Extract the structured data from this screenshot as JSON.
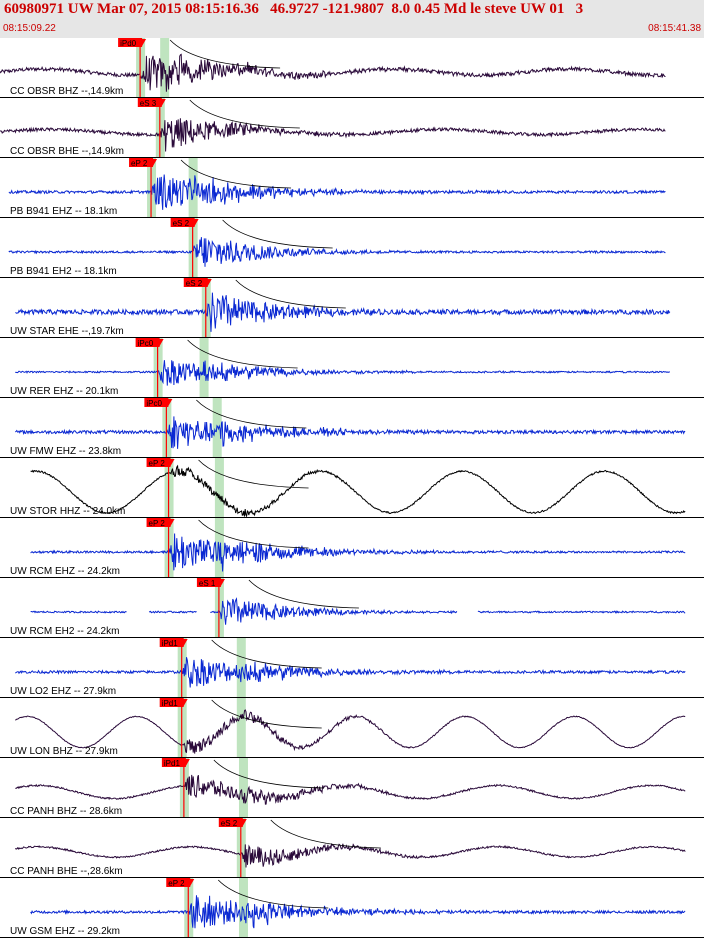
{
  "header": {
    "title": "60980971 UW Mar 07, 2015 08:15:16.36   46.9727 -121.9807  8.0 0.45 Md le steve UW 01   3",
    "time_start": "08:15:09.22",
    "time_end": "08:15:41.38"
  },
  "colors": {
    "header_bg": "#e6e6e6",
    "header_text": "#cc0000",
    "trace_velocity": "#0a28d2",
    "trace_broadband": "#2a0a3a",
    "trace_accel": "#000000",
    "pick": "#ff0000",
    "window": "#bfe4bf"
  },
  "chart_data": {
    "type": "seismogram",
    "x_range_sec": [
      0,
      32.16
    ],
    "traces": [
      {
        "label": "CC OBSR BHZ --,14.9km",
        "color_key": "trace_broadband",
        "pick_label": "iPd0",
        "pick_sec": 6.4,
        "s_sec": 7.5,
        "start": 0,
        "end": 30.4,
        "noise": 0.07,
        "lf": 0.12,
        "lf_period": 8,
        "eq": 0.85,
        "gaps": []
      },
      {
        "label": "CC OBSR BHE --,14.9km",
        "color_key": "trace_broadband",
        "pick_label": "eS 3",
        "pick_sec": 7.3,
        "s_sec": 7.3,
        "start": 0,
        "end": 30.4,
        "noise": 0.06,
        "lf": 0.1,
        "lf_period": 9,
        "eq": 0.8,
        "gaps": []
      },
      {
        "label": "PB B941 EHZ -- 18.1km",
        "color_key": "trace_velocity",
        "pick_label": "eP 2",
        "pick_sec": 6.9,
        "s_sec": 8.8,
        "start": 0.4,
        "end": 30.4,
        "noise": 0.05,
        "lf": 0,
        "lf_period": 5,
        "eq": 0.9,
        "gaps": []
      },
      {
        "label": "PB B941 EH2 -- 18.1km",
        "color_key": "trace_velocity",
        "pick_label": "eS 2",
        "pick_sec": 8.8,
        "s_sec": 8.8,
        "start": 0.4,
        "end": 30.4,
        "noise": 0.04,
        "lf": 0,
        "lf_period": 5,
        "eq": 0.85,
        "gaps": []
      },
      {
        "label": "UW STAR EHE --,19.7km",
        "color_key": "trace_velocity",
        "pick_label": "eS 2",
        "pick_sec": 9.4,
        "s_sec": 9.4,
        "start": 0.7,
        "end": 30.6,
        "noise": 0.09,
        "lf": 0,
        "lf_period": 5,
        "eq": 0.9,
        "gaps": []
      },
      {
        "label": "UW RER EHZ -- 20.1km",
        "color_key": "trace_velocity",
        "pick_label": "iPc0",
        "pick_sec": 7.2,
        "s_sec": 9.3,
        "start": 0.7,
        "end": 30.6,
        "noise": 0.03,
        "lf": 0,
        "lf_period": 5,
        "eq": 0.65,
        "gaps": []
      },
      {
        "label": "UW FMW EHZ -- 23.8km",
        "color_key": "trace_velocity",
        "pick_label": "iPc0",
        "pick_sec": 7.6,
        "s_sec": 9.9,
        "start": 0.7,
        "end": 31.3,
        "noise": 0.06,
        "lf": 0,
        "lf_period": 5,
        "eq": 0.75,
        "gaps": []
      },
      {
        "label": "UW STOR HHZ -- 24.0km",
        "color_key": "trace_accel",
        "pick_label": "eP 2",
        "pick_sec": 7.7,
        "s_sec": 10.0,
        "start": 1.4,
        "end": 31.3,
        "noise": 0.03,
        "lf": 0.8,
        "lf_period": 6.5,
        "eq": 0.25,
        "gaps": []
      },
      {
        "label": "UW RCM EHZ -- 24.2km",
        "color_key": "trace_velocity",
        "pick_label": "eP 2",
        "pick_sec": 7.7,
        "s_sec": 10.0,
        "start": 1.4,
        "end": 31.3,
        "noise": 0.04,
        "lf": 0,
        "lf_period": 5,
        "eq": 0.9,
        "gaps": []
      },
      {
        "label": "UW RCM EH2 -- 24.2km",
        "color_key": "trace_velocity",
        "pick_label": "eS 1",
        "pick_sec": 10.0,
        "s_sec": 10.0,
        "start": 1.4,
        "end": 31.3,
        "noise": 0.03,
        "lf": 0,
        "lf_period": 5,
        "eq": 0.7,
        "gaps": [
          [
            5.8,
            6.8
          ],
          [
            9.0,
            9.6
          ],
          [
            20.9,
            21.8
          ]
        ]
      },
      {
        "label": "UW LO2 EHZ -- 27.9km",
        "color_key": "trace_velocity",
        "pick_label": "iPd1",
        "pick_sec": 8.3,
        "s_sec": 11.0,
        "start": 0.7,
        "end": 31.3,
        "noise": 0.05,
        "lf": 0,
        "lf_period": 5,
        "eq": 0.75,
        "gaps": []
      },
      {
        "label": "UW LON BHZ -- 27.9km",
        "color_key": "trace_broadband",
        "pick_label": "iPd1",
        "pick_sec": 8.3,
        "s_sec": 11.0,
        "start": 0.7,
        "end": 31.3,
        "noise": 0.015,
        "lf": 0.6,
        "lf_period": 5,
        "eq": 0.35,
        "gaps": []
      },
      {
        "label": "CC PANH BHZ -- 28.6km",
        "color_key": "trace_broadband",
        "pick_label": "iPd1",
        "pick_sec": 8.4,
        "s_sec": 11.1,
        "start": 0.7,
        "end": 31.3,
        "noise": 0.03,
        "lf": 0.25,
        "lf_period": 7,
        "eq": 0.55,
        "gaps": []
      },
      {
        "label": "CC PANH BHE --,28.6km",
        "color_key": "trace_broadband",
        "pick_label": "eS 2",
        "pick_sec": 11.0,
        "s_sec": 11.0,
        "start": 0.7,
        "end": 31.3,
        "noise": 0.03,
        "lf": 0.2,
        "lf_period": 7,
        "eq": 0.55,
        "gaps": []
      },
      {
        "label": "UW GSM EHZ -- 29.2km",
        "color_key": "trace_velocity",
        "pick_label": "eP 2",
        "pick_sec": 8.6,
        "s_sec": 11.1,
        "start": 1.4,
        "end": 31.3,
        "noise": 0.05,
        "lf": 0,
        "lf_period": 5,
        "eq": 0.85,
        "gaps": []
      }
    ]
  }
}
